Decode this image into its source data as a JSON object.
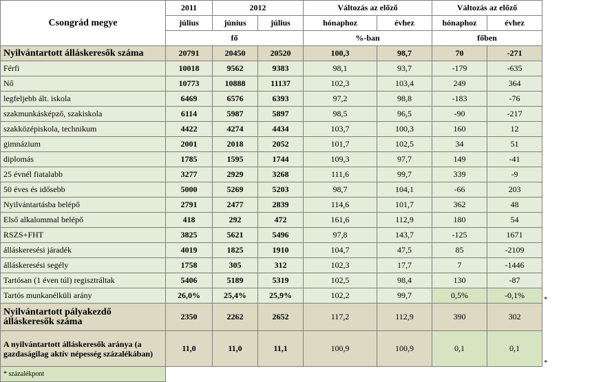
{
  "header": {
    "county": "Csongrád megye",
    "year2011": "2011",
    "year2012": "2012",
    "change_prev_1": "Változás az előző",
    "change_prev_2": "Változás az előző",
    "m_jul1": "július",
    "m_jun": "június",
    "m_jul2": "július",
    "to_month1": "hónaphoz",
    "to_year1": "évhez",
    "to_month2": "hónaphoz",
    "to_year2": "évhez",
    "unit_fo": "fő",
    "unit_pct": "%-ban",
    "unit_foben": "főben"
  },
  "rows": [
    {
      "label": "Nyilvántartott álláskeresők száma",
      "v": [
        "20791",
        "20450",
        "20520",
        "100,3",
        "98,7",
        "70",
        "-271"
      ],
      "star": ""
    },
    {
      "label": "Férfi",
      "v": [
        "10018",
        "9562",
        "9383",
        "98,1",
        "93,7",
        "-179",
        "-635"
      ],
      "star": ""
    },
    {
      "label": "Nő",
      "v": [
        "10773",
        "10888",
        "11137",
        "102,3",
        "103,4",
        "249",
        "364"
      ],
      "star": ""
    },
    {
      "label": "legfeljebb ált. iskola",
      "v": [
        "6469",
        "6576",
        "6393",
        "97,2",
        "98,8",
        "-183",
        "-76"
      ],
      "star": ""
    },
    {
      "label": "szakmunkásképző, szakiskola",
      "v": [
        "6114",
        "5987",
        "5897",
        "98,5",
        "96,5",
        "-90",
        "-217"
      ],
      "star": ""
    },
    {
      "label": "szakközépiskola, technikum",
      "v": [
        "4422",
        "4274",
        "4434",
        "103,7",
        "100,3",
        "160",
        "12"
      ],
      "star": ""
    },
    {
      "label": "gimnázium",
      "v": [
        "2001",
        "2018",
        "2052",
        "101,7",
        "102,5",
        "34",
        "51"
      ],
      "star": ""
    },
    {
      "label": "diplomás",
      "v": [
        "1785",
        "1595",
        "1744",
        "109,3",
        "97,7",
        "149",
        "-41"
      ],
      "star": ""
    },
    {
      "label": "25 évnél fiatalabb",
      "v": [
        "3277",
        "2929",
        "3268",
        "111,6",
        "99,7",
        "339",
        "-9"
      ],
      "star": ""
    },
    {
      "label": "50 éves és idősebb",
      "v": [
        "5000",
        "5269",
        "5203",
        "98,7",
        "104,1",
        "-66",
        "203"
      ],
      "star": ""
    },
    {
      "label": "Nyilvántartásba belépő",
      "v": [
        "2791",
        "2477",
        "2839",
        "114,6",
        "101,7",
        "362",
        "48"
      ],
      "star": ""
    },
    {
      "label": "Első alkalommal belépő",
      "v": [
        "418",
        "292",
        "472",
        "161,6",
        "112,9",
        "180",
        "54"
      ],
      "star": ""
    },
    {
      "label": "RSZS+FHT",
      "v": [
        "3825",
        "5621",
        "5496",
        "97,8",
        "143,7",
        "-125",
        "1671"
      ],
      "star": ""
    },
    {
      "label": "álláskeresési járadék",
      "v": [
        "4019",
        "1825",
        "1910",
        "104,7",
        "47,5",
        "85",
        "-2109"
      ],
      "star": ""
    },
    {
      "label": "álláskeresési segély",
      "v": [
        "1758",
        "305",
        "312",
        "102,3",
        "17,7",
        "7",
        "-1446"
      ],
      "star": ""
    },
    {
      "label": "Tartósan (1 éven túl) regisztráltak",
      "v": [
        "5406",
        "5189",
        "5319",
        "102,5",
        "98,4",
        "130",
        "-87"
      ],
      "star": ""
    },
    {
      "label": "Tartós munkanélküli arány",
      "v": [
        "26,0%",
        "25,4%",
        "25,9%",
        "102,2",
        "99,7",
        "0,5%",
        "-0,1%"
      ],
      "star": "*"
    }
  ],
  "palyakezdo": {
    "label": "Nyilvántartott pályakezdő álláskeresők száma",
    "v": [
      "2350",
      "2262",
      "2652",
      "117,2",
      "112,9",
      "390",
      "302"
    ]
  },
  "arany": {
    "label": "A nyilvántartott álláskeresők aránya  (a gazdaságilag aktív népesség százalékában)",
    "v": [
      "11,0",
      "11,0",
      "11,1",
      "100,9",
      "100,9",
      "0,1",
      "0,1"
    ],
    "star": "*"
  },
  "footnote": "* százalékpont"
}
